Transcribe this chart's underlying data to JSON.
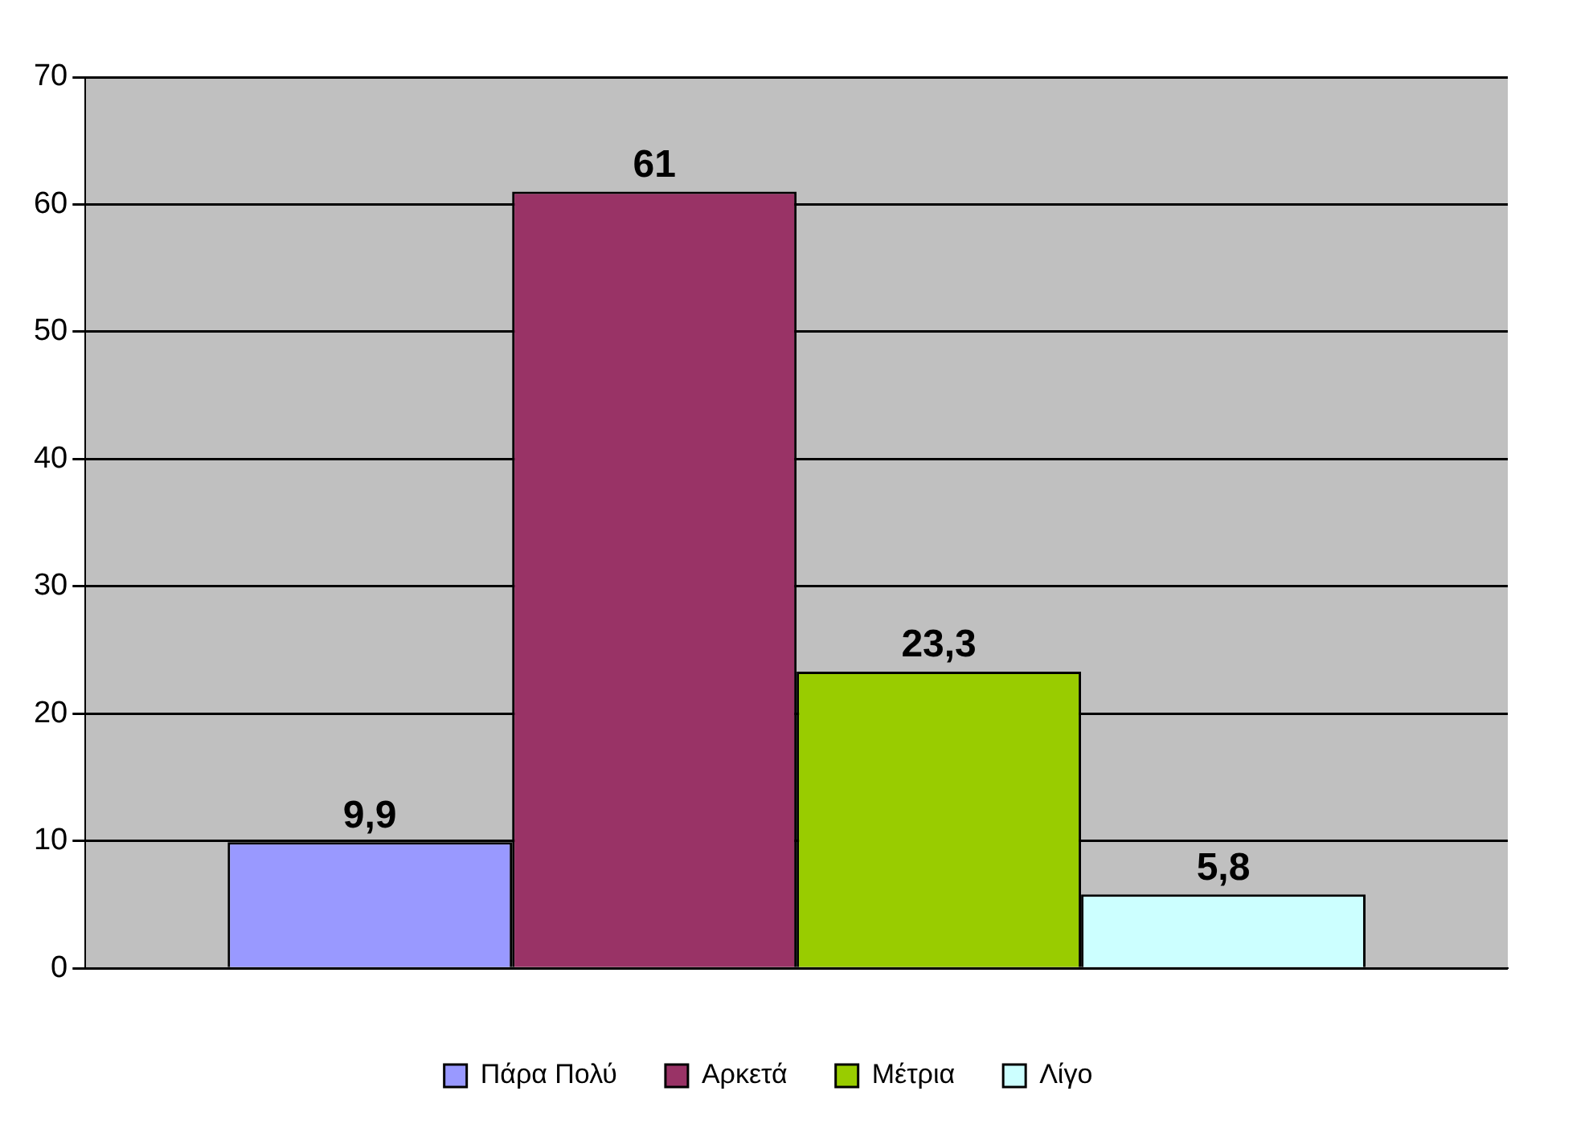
{
  "chart_data": {
    "type": "bar",
    "categories": [
      null
    ],
    "series": [
      {
        "name": "Πάρα Πολύ",
        "color": "#9999ff",
        "values": [
          9.9
        ],
        "value_labels": [
          "9,9"
        ]
      },
      {
        "name": "Αρκετά",
        "color": "#993366",
        "values": [
          61
        ],
        "value_labels": [
          "61"
        ]
      },
      {
        "name": "Μέτρια",
        "color": "#99cc00",
        "values": [
          23.3
        ],
        "value_labels": [
          "23,3"
        ]
      },
      {
        "name": "Λίγο",
        "color": "#ccffff",
        "values": [
          5.8
        ],
        "value_labels": [
          "5,8"
        ]
      }
    ],
    "ylim": [
      0,
      70
    ],
    "yticks": [
      0,
      10,
      20,
      30,
      40,
      50,
      60,
      70
    ],
    "grid": "y",
    "legend": "bottom"
  }
}
